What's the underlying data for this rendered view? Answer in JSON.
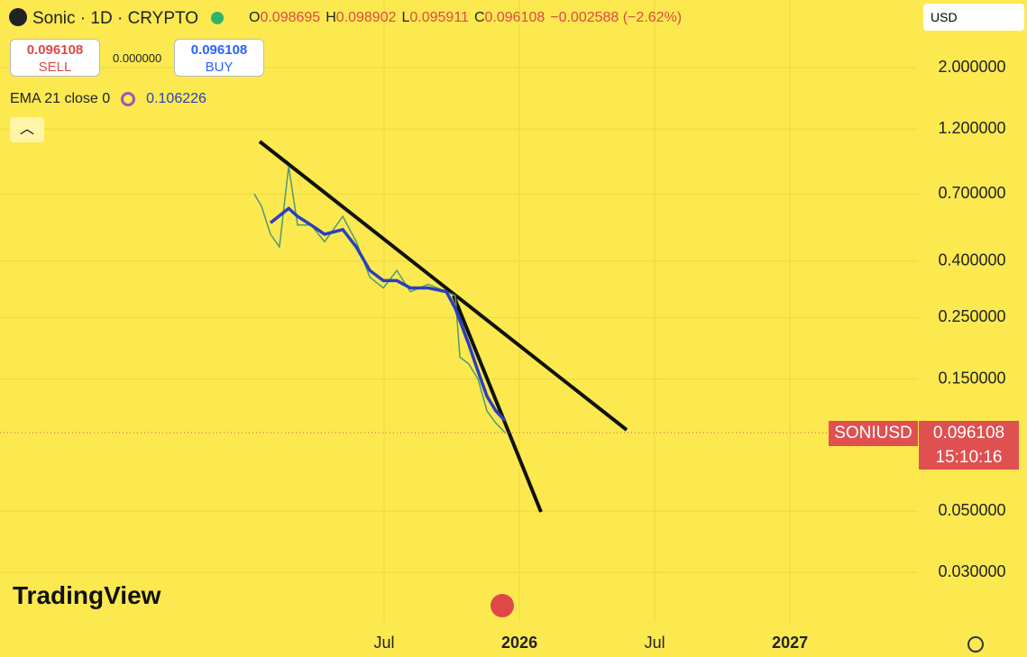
{
  "header": {
    "symbol": "Sonic · 1D · CRYPTO",
    "ohlc": [
      {
        "label": "O",
        "value": "0.098695"
      },
      {
        "label": "H",
        "value": "0.098902"
      },
      {
        "label": "L",
        "value": "0.095911"
      },
      {
        "label": "C",
        "value": "0.096108"
      }
    ],
    "change": "−0.002588 (−2.62%)",
    "sell_price": "0.096108",
    "sell_label": "SELL",
    "spread": "0.000000",
    "buy_price": "0.096108",
    "buy_label": "BUY",
    "indicator": "EMA 21 close 0",
    "indicator_value": "0.106226",
    "currency": "USD",
    "logo": "TradingView"
  },
  "price_tag": {
    "symbol": "SONIUSD",
    "price": "0.096108",
    "countdown": "15:10:16"
  },
  "chart_data": {
    "type": "line",
    "log_scale": true,
    "grid": true,
    "xlim": [
      2024.08,
      2027.473
    ],
    "ylim": [
      3.51,
      0.0199
    ],
    "xticks": [
      {
        "value": 2025.5,
        "label": "Jul"
      },
      2026,
      {
        "value": 2026.5,
        "label": "Jul"
      },
      2027
    ],
    "yticks": [
      {
        "value": 2,
        "label": "2.000000"
      },
      {
        "value": 1.2,
        "label": "1.200000"
      },
      {
        "value": 0.7,
        "label": "0.700000"
      },
      {
        "value": 0.4,
        "label": "0.400000"
      },
      {
        "value": 0.25,
        "label": "0.250000"
      },
      {
        "value": 0.15,
        "label": "0.150000"
      },
      {
        "value": 0.05,
        "label": "0.050000"
      },
      {
        "value": 0.03,
        "label": "0.030000"
      }
    ],
    "last_price": 0.096108,
    "series": [
      {
        "color": "#4f9a72",
        "x": [
          2025.02,
          2025.047,
          2025.08,
          2025.113,
          2025.147,
          2025.18,
          2025.23,
          2025.28,
          2025.347,
          2025.397,
          2025.447,
          2025.497,
          2025.547,
          2025.597,
          2025.663,
          2025.73,
          2025.763,
          2025.78,
          2025.813,
          2025.847,
          2025.88,
          2025.913,
          2025.947
        ],
        "values": [
          0.7,
          0.63,
          0.5,
          0.45,
          0.88,
          0.54,
          0.54,
          0.47,
          0.58,
          0.47,
          0.35,
          0.32,
          0.37,
          0.31,
          0.33,
          0.31,
          0.3,
          0.18,
          0.17,
          0.15,
          0.115,
          0.104,
          0.096
        ]
      },
      {
        "name": "EMA 21 close 0",
        "color": "#2b3fbf",
        "x": [
          2025.08,
          2025.147,
          2025.18,
          2025.23,
          2025.28,
          2025.347,
          2025.397,
          2025.447,
          2025.497,
          2025.547,
          2025.597,
          2025.663,
          2025.73,
          2025.763,
          2025.813,
          2025.847,
          2025.88,
          2025.913,
          2025.947
        ],
        "values": [
          0.55,
          0.62,
          0.58,
          0.54,
          0.5,
          0.52,
          0.45,
          0.37,
          0.34,
          0.34,
          0.32,
          0.32,
          0.31,
          0.27,
          0.2,
          0.16,
          0.13,
          0.115,
          0.106
        ]
      }
    ]
  }
}
